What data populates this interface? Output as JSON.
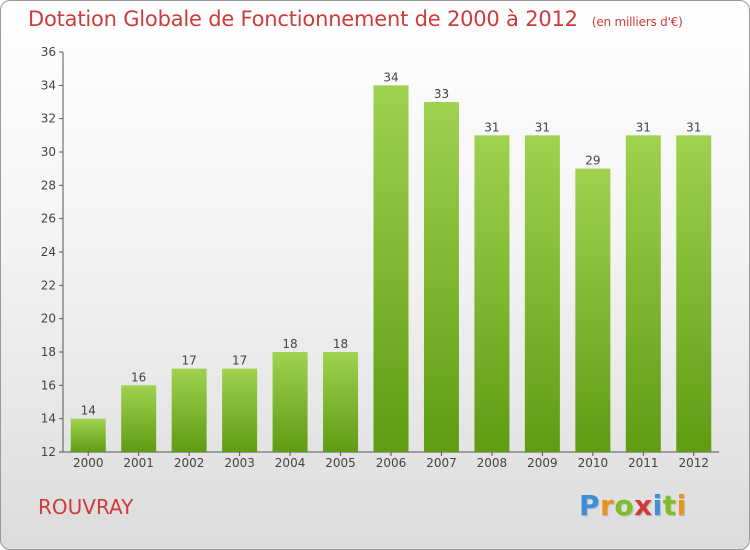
{
  "header": {
    "title": "Dotation Globale de Fonctionnement de 2000 à 2012",
    "unit": "(en milliers d'€)"
  },
  "footer": {
    "commune": "ROUVRAY",
    "logo_text": "Proxiti",
    "logo_letters": [
      {
        "ch": "P",
        "color": "#3a8fd6"
      },
      {
        "ch": "r",
        "color": "#e8931a"
      },
      {
        "ch": "o",
        "color": "#7dbd2a"
      },
      {
        "ch": "x",
        "color": "#d23a3a"
      },
      {
        "ch": "i",
        "color": "#3a8fd6"
      },
      {
        "ch": "t",
        "color": "#7dbd2a"
      },
      {
        "ch": "i",
        "color": "#e8931a"
      }
    ]
  },
  "colors": {
    "title": "#d23a3a",
    "bar_top": "#9fd24f",
    "bar_bottom": "#5f9c12",
    "axis": "#555555"
  },
  "chart_data": {
    "type": "bar",
    "title": "Dotation Globale de Fonctionnement de 2000 à 2012",
    "subtitle": "(en milliers d'€)",
    "xlabel": "",
    "ylabel": "",
    "categories": [
      "2000",
      "2001",
      "2002",
      "2003",
      "2004",
      "2005",
      "2006",
      "2007",
      "2008",
      "2009",
      "2010",
      "2011",
      "2012"
    ],
    "values": [
      14,
      16,
      17,
      17,
      18,
      18,
      34,
      33,
      31,
      31,
      29,
      31,
      31
    ],
    "ylim": [
      12,
      36
    ],
    "yticks": [
      12,
      14,
      16,
      18,
      20,
      22,
      24,
      26,
      28,
      30,
      32,
      34,
      36
    ],
    "grid": false,
    "data_labels": true
  }
}
